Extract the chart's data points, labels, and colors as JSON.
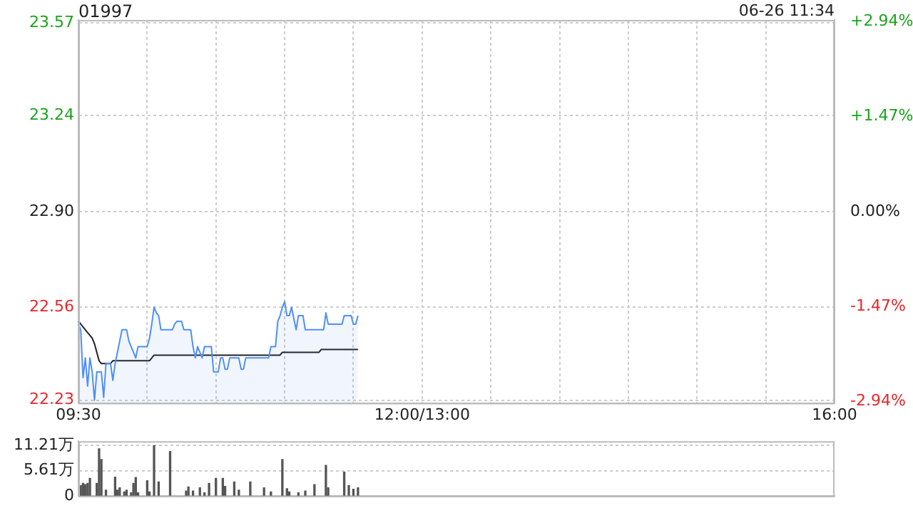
{
  "chart_data": [
    {
      "type": "line",
      "title": "01997",
      "subtitle": "06-26 11:34",
      "categories": [
        "09:30",
        null,
        null,
        null,
        null,
        null,
        null,
        null,
        null,
        null,
        null,
        null,
        null,
        null,
        null,
        null,
        null,
        null,
        null,
        null,
        null,
        null,
        null,
        null,
        null,
        null,
        null,
        null,
        null,
        null,
        null,
        null,
        null,
        null,
        null,
        null,
        null,
        null,
        null,
        null,
        null,
        null,
        null,
        null,
        null,
        null,
        null,
        null,
        null,
        null,
        null,
        null,
        null,
        null,
        null,
        null,
        null,
        null,
        null,
        null,
        null,
        null,
        null,
        null,
        null,
        null,
        null,
        null,
        null,
        null,
        null,
        null,
        null,
        null,
        null,
        null,
        null,
        null,
        null,
        null,
        null,
        null,
        null,
        null,
        null,
        null,
        null,
        null,
        null,
        null,
        null,
        null,
        null,
        null,
        null,
        null,
        null,
        null,
        null,
        null,
        null,
        null,
        null,
        null,
        null,
        null,
        null,
        null,
        null,
        null,
        null,
        null,
        null,
        null,
        null,
        null,
        null,
        null,
        null,
        null,
        null,
        null,
        null,
        null,
        null,
        null,
        null,
        null,
        null,
        null,
        null,
        null,
        null,
        null,
        null,
        null,
        null,
        null,
        null,
        null,
        null,
        null,
        null,
        null,
        null,
        null,
        null,
        null,
        null,
        null,
        "12:00/13:00",
        null,
        null,
        null,
        null,
        null,
        null,
        null,
        null,
        null,
        null,
        null,
        null,
        null,
        null,
        null,
        null,
        null,
        null,
        null,
        null,
        null,
        null,
        null,
        null,
        null,
        null,
        null,
        null,
        null,
        null,
        null,
        null,
        null,
        null,
        null,
        null,
        null,
        null,
        null,
        null,
        null,
        null,
        null,
        null,
        null,
        null,
        null,
        null,
        null,
        null,
        null,
        null,
        null,
        null,
        null,
        null,
        null,
        null,
        null,
        null,
        null,
        null,
        null,
        null,
        null,
        null,
        null,
        null,
        null,
        null,
        null,
        null,
        null,
        null,
        null,
        null,
        null,
        null,
        null,
        null,
        null,
        null,
        null,
        null,
        null,
        null,
        null,
        null,
        null,
        null,
        null,
        null,
        null,
        null,
        null,
        null,
        null,
        null,
        null,
        null,
        null,
        null,
        null,
        null,
        null,
        null,
        null,
        null,
        null,
        null,
        null,
        null,
        null,
        null,
        null,
        null,
        null,
        null,
        null,
        null,
        null,
        null,
        null,
        null,
        null,
        null,
        null,
        null,
        null,
        null,
        null,
        null,
        null,
        null,
        null,
        null,
        null,
        null,
        null,
        null,
        null,
        null,
        null,
        null,
        null,
        null,
        null,
        null,
        null,
        null,
        null,
        null,
        null,
        null,
        null,
        null,
        null,
        null,
        null,
        null,
        null,
        null,
        null,
        null,
        null,
        null,
        null,
        null,
        null,
        null,
        null,
        null,
        null,
        null,
        null,
        null,
        null,
        null,
        null,
        "16:00"
      ],
      "ylim": [
        22.22,
        23.58
      ],
      "yticks": [
        {
          "value": 22.23,
          "label": "22.23"
        },
        {
          "value": 22.56,
          "label": "22.56"
        },
        {
          "value": 22.9,
          "label": "22.90"
        },
        {
          "value": 23.24,
          "label": "23.24"
        },
        {
          "value": 23.57,
          "label": "23.57"
        }
      ],
      "y2lim": [
        -2.97,
        2.97
      ],
      "y2ticks": [
        {
          "value": -2.94,
          "label": "-2.94%"
        },
        {
          "value": -1.47,
          "label": "-1.47%"
        },
        {
          "value": 0,
          "label": "0.00%"
        },
        {
          "value": 1.47,
          "label": "+1.47%"
        },
        {
          "value": 2.94,
          "label": "+2.94%"
        }
      ],
      "grid": true,
      "legend": false,
      "marker": "none",
      "line_style": "solid",
      "series": [
        {
          "type": "area",
          "color": "#4f8ff7",
          "values": [
            22.5,
            22.48,
            22.31,
            22.38,
            22.28,
            22.38,
            22.33,
            22.23,
            22.33,
            22.33,
            22.33,
            22.24,
            22.36,
            22.36,
            22.36,
            22.3,
            22.36,
            22.4,
            22.44,
            22.48,
            22.48,
            22.48,
            22.44,
            22.42,
            22.4,
            22.38,
            22.42,
            22.42,
            22.42,
            22.42,
            22.42,
            22.45,
            22.5,
            22.56,
            22.54,
            22.53,
            22.48,
            22.48,
            22.48,
            22.48,
            22.48,
            22.48,
            22.5,
            22.51,
            22.51,
            22.51,
            22.48,
            22.48,
            22.48,
            22.48,
            22.42,
            22.38,
            22.42,
            22.4,
            22.38,
            22.42,
            22.42,
            22.42,
            22.42,
            22.33,
            22.33,
            22.33,
            22.38,
            22.38,
            22.34,
            22.34,
            22.38,
            22.38,
            22.38,
            22.38,
            22.38,
            22.34,
            22.34,
            22.38,
            22.38,
            22.38,
            22.38,
            22.38,
            22.38,
            22.38,
            22.38,
            22.38,
            22.38,
            22.38,
            22.42,
            22.42,
            22.42,
            22.51,
            22.53,
            22.56,
            22.58,
            22.53,
            22.53,
            22.56,
            22.52,
            22.48,
            22.53,
            22.53,
            22.53,
            22.48,
            22.48,
            22.48,
            22.48,
            22.48,
            22.48,
            22.48,
            22.48,
            22.48,
            22.54,
            22.5,
            22.5,
            22.5,
            22.5,
            22.5,
            22.5,
            22.5,
            22.53,
            22.53,
            22.53,
            22.53,
            22.5,
            22.5,
            22.53,
            null,
            null,
            null,
            null,
            null,
            null,
            null,
            null,
            null,
            null,
            null,
            null,
            null,
            null,
            null,
            null,
            null,
            null,
            null,
            null,
            null,
            null,
            null,
            null,
            null,
            null,
            null,
            null,
            null,
            null,
            null,
            null,
            null,
            null,
            null,
            null,
            null,
            null,
            null,
            null,
            null,
            null,
            null,
            null,
            null,
            null,
            null,
            null,
            null,
            null,
            null,
            null,
            null,
            null,
            null,
            null,
            null,
            null,
            null,
            null,
            null,
            null,
            null,
            null,
            null,
            null,
            null,
            null,
            null,
            null,
            null,
            null,
            null,
            null,
            null,
            null,
            null,
            null,
            null,
            null,
            null,
            null,
            null,
            null,
            null,
            null,
            null,
            null,
            null,
            null,
            null,
            null,
            null,
            null,
            null,
            null,
            null,
            null,
            null,
            null,
            null,
            null,
            null,
            null,
            null,
            null,
            null,
            null,
            null,
            null,
            null,
            null,
            null,
            null,
            null,
            null,
            null,
            null,
            null,
            null,
            null,
            null,
            null,
            null,
            null,
            null,
            null,
            null,
            null,
            null,
            null,
            null,
            null,
            null,
            null,
            null,
            null,
            null,
            null,
            null,
            null,
            null,
            null,
            null,
            null,
            null,
            null,
            null,
            null,
            null,
            null,
            null,
            null,
            null,
            null,
            null,
            null,
            null,
            null,
            null,
            null,
            null,
            null,
            null,
            null,
            null,
            null,
            null,
            null,
            null,
            null,
            null,
            null,
            null,
            null,
            null,
            null,
            null,
            null,
            null,
            null,
            null,
            null,
            null,
            null,
            null,
            null,
            null,
            null,
            null,
            null,
            null,
            null,
            null,
            null,
            null,
            null,
            null,
            null,
            null,
            null,
            null,
            null,
            null,
            null,
            null,
            null,
            null
          ]
        },
        {
          "type": "line",
          "color": "#222222",
          "values": [
            22.51,
            22.5,
            22.49,
            22.48,
            22.47,
            22.46,
            22.45,
            22.43,
            22.4,
            22.37,
            22.36,
            22.36,
            22.36,
            22.36,
            22.36,
            22.37,
            22.37,
            22.37,
            22.37,
            22.37,
            22.37,
            22.37,
            22.37,
            22.37,
            22.37,
            22.37,
            22.37,
            22.37,
            22.37,
            22.37,
            22.37,
            22.37,
            22.38,
            22.39,
            22.39,
            22.39,
            22.39,
            22.39,
            22.39,
            22.39,
            22.39,
            22.39,
            22.39,
            22.39,
            22.39,
            22.39,
            22.39,
            22.39,
            22.39,
            22.39,
            22.39,
            22.39,
            22.39,
            22.39,
            22.39,
            22.39,
            22.39,
            22.39,
            22.39,
            22.39,
            22.39,
            22.39,
            22.39,
            22.39,
            22.39,
            22.39,
            22.39,
            22.39,
            22.39,
            22.39,
            22.39,
            22.39,
            22.39,
            22.39,
            22.39,
            22.39,
            22.39,
            22.39,
            22.39,
            22.39,
            22.39,
            22.39,
            22.39,
            22.39,
            22.39,
            22.39,
            22.39,
            22.39,
            22.39,
            22.4,
            22.4,
            22.4,
            22.4,
            22.4,
            22.4,
            22.4,
            22.4,
            22.4,
            22.4,
            22.4,
            22.4,
            22.4,
            22.4,
            22.4,
            22.4,
            22.4,
            22.41,
            22.41,
            22.41,
            22.41,
            22.41,
            22.41,
            22.41,
            22.41,
            22.41,
            22.41,
            22.41,
            22.41,
            22.41,
            22.41,
            22.41,
            22.41,
            22.41,
            null,
            null,
            null,
            null,
            null,
            null,
            null,
            null,
            null,
            null,
            null,
            null,
            null,
            null,
            null,
            null,
            null,
            null,
            null,
            null,
            null,
            null,
            null,
            null,
            null,
            null,
            null,
            null,
            null,
            null,
            null,
            null,
            null,
            null,
            null,
            null,
            null,
            null,
            null,
            null,
            null,
            null,
            null,
            null,
            null,
            null,
            null,
            null,
            null,
            null,
            null,
            null,
            null,
            null,
            null,
            null,
            null,
            null,
            null,
            null,
            null,
            null,
            null,
            null,
            null,
            null,
            null,
            null,
            null,
            null,
            null,
            null,
            null,
            null,
            null,
            null,
            null,
            null,
            null,
            null,
            null,
            null,
            null,
            null,
            null,
            null,
            null,
            null,
            null,
            null,
            null,
            null,
            null,
            null,
            null,
            null,
            null,
            null,
            null,
            null,
            null,
            null,
            null,
            null,
            null,
            null,
            null,
            null,
            null,
            null,
            null,
            null,
            null,
            null,
            null,
            null,
            null,
            null,
            null,
            null,
            null,
            null,
            null,
            null,
            null,
            null,
            null,
            null,
            null,
            null,
            null,
            null,
            null,
            null,
            null,
            null,
            null,
            null,
            null,
            null,
            null,
            null,
            null,
            null,
            null,
            null,
            null,
            null,
            null,
            null,
            null,
            null,
            null,
            null,
            null,
            null,
            null,
            null,
            null,
            null,
            null,
            null,
            null,
            null,
            null,
            null,
            null,
            null,
            null,
            null,
            null,
            null,
            null,
            null,
            null,
            null,
            null,
            null,
            null,
            null,
            null,
            null,
            null,
            null,
            null,
            null,
            null,
            null,
            null,
            null,
            null,
            null,
            null,
            null,
            null,
            null,
            null,
            null,
            null,
            null,
            null,
            null,
            null,
            null,
            null,
            null,
            null,
            null
          ]
        }
      ]
    },
    {
      "type": "bar",
      "categories": [
        null,
        null,
        null,
        null,
        null,
        null,
        null,
        null,
        null,
        null,
        null,
        null,
        null,
        null,
        null,
        null,
        null,
        null,
        null,
        null,
        null,
        null,
        null,
        null,
        null,
        null,
        null,
        null,
        null,
        null,
        null,
        null,
        null,
        null,
        null,
        null,
        null,
        null,
        null,
        null,
        null,
        null,
        null,
        null,
        null,
        null,
        null,
        null,
        null,
        null,
        null,
        null,
        null,
        null,
        null,
        null,
        null,
        null,
        null,
        null,
        null,
        null,
        null,
        null,
        null,
        null,
        null,
        null,
        null,
        null,
        null,
        null,
        null,
        null,
        null,
        null,
        null,
        null,
        null,
        null,
        null,
        null,
        null,
        null,
        null,
        null,
        null,
        null,
        null,
        null,
        null,
        null,
        null,
        null,
        null,
        null,
        null,
        null,
        null,
        null,
        null,
        null,
        null,
        null,
        null,
        null,
        null,
        null,
        null,
        null,
        null,
        null,
        null,
        null,
        null,
        null,
        null,
        null,
        null,
        null,
        null,
        null,
        null,
        null,
        null,
        null,
        null,
        null,
        null,
        null,
        null,
        null,
        null,
        null,
        null,
        null,
        null,
        null,
        null,
        null,
        null,
        null,
        null,
        null,
        null,
        null,
        null,
        null,
        null,
        null,
        null,
        null,
        null,
        null,
        null,
        null,
        null,
        null,
        null,
        null,
        null,
        null,
        null,
        null,
        null,
        null,
        null,
        null,
        null,
        null,
        null,
        null,
        null,
        null,
        null,
        null,
        null,
        null,
        null,
        null,
        null,
        null,
        null,
        null,
        null,
        null,
        null,
        null,
        null,
        null,
        null,
        null,
        null,
        null,
        null,
        null,
        null,
        null,
        null,
        null,
        null,
        null,
        null,
        null,
        null,
        null,
        null,
        null,
        null,
        null,
        null,
        null,
        null,
        null,
        null,
        null,
        null,
        null,
        null,
        null,
        null,
        null,
        null,
        null,
        null,
        null,
        null,
        null,
        null,
        null,
        null,
        null,
        null,
        null,
        null,
        null,
        null,
        null,
        null,
        null,
        null,
        null,
        null,
        null,
        null,
        null,
        null,
        null,
        null,
        null,
        null,
        null,
        null,
        null,
        null,
        null,
        null,
        null,
        null,
        null,
        null,
        null,
        null,
        null,
        null,
        null,
        null,
        null,
        null,
        null,
        null,
        null,
        null,
        null,
        null,
        null,
        null,
        null,
        null,
        null,
        null,
        null,
        null,
        null,
        null,
        null,
        null,
        null,
        null,
        null,
        null,
        null,
        null,
        null,
        null,
        null,
        null,
        null,
        null,
        null,
        null,
        null,
        null,
        null,
        null,
        null,
        null,
        null,
        null,
        null,
        null,
        null,
        null,
        null,
        null,
        null,
        null,
        null,
        null,
        null,
        null,
        null,
        null,
        null,
        null,
        null,
        null,
        null,
        null,
        null,
        null
      ],
      "ylim": [
        0,
        12.2
      ],
      "yticks": [
        {
          "value": 0,
          "label": "0"
        },
        {
          "value": 5.61,
          "label": "5.61万"
        },
        {
          "value": 11.21,
          "label": "11.21万"
        }
      ],
      "grid": "y",
      "legend": false,
      "tick_labels": "y",
      "color": "#555555",
      "values": [
        null,
        2.3,
        2.8,
        2.5,
        2.8,
        3.9,
        null,
        null,
        2.8,
        10.5,
        8.1,
        null,
        1.3,
        null,
        null,
        null,
        4.2,
        1.3,
        1.8,
        null,
        0.9,
        1.3,
        null,
        0.7,
        2.8,
        4.1,
        0.7,
        null,
        null,
        null,
        3.4,
        0.9,
        null,
        11.2,
        null,
        3.1,
        null,
        null,
        null,
        null,
        9.9,
        null,
        null,
        null,
        null,
        null,
        null,
        1.1,
        2,
        null,
        1.1,
        null,
        null,
        1.8,
        null,
        0.7,
        null,
        2.8,
        null,
        null,
        3.9,
        null,
        null,
        3.9,
        2.1,
        null,
        null,
        null,
        3.1,
        null,
        1.3,
        null,
        null,
        null,
        null,
        3.1,
        null,
        null,
        null,
        null,
        null,
        1.8,
        null,
        null,
        0.9,
        null,
        null,
        null,
        null,
        8.1,
        null,
        1.6,
        0.9,
        null,
        null,
        null,
        0.7,
        null,
        null,
        1.1,
        null,
        null,
        null,
        2.5,
        null,
        null,
        null,
        null,
        6.8,
        1.8,
        null,
        null,
        null,
        null,
        null,
        null,
        5.3,
        null,
        2.3,
        null,
        1.5,
        null,
        1.8,
        null,
        null,
        null,
        null,
        null,
        null,
        null,
        null,
        null,
        null,
        null,
        null,
        null,
        null,
        null,
        null,
        null,
        null,
        null,
        null,
        null,
        null,
        null,
        null,
        null,
        null,
        null,
        null,
        null,
        null,
        null,
        null,
        null,
        null,
        null,
        null,
        null,
        null,
        null,
        null,
        null,
        null,
        null,
        null,
        null,
        null,
        null,
        null,
        null,
        null,
        null,
        null,
        null,
        null,
        null,
        null,
        null,
        null,
        null,
        null,
        null,
        null,
        null,
        null,
        null,
        null,
        null,
        null,
        null,
        null,
        null,
        null,
        null,
        null,
        null,
        null,
        null,
        null,
        null,
        null,
        null,
        null,
        null,
        null,
        null,
        null,
        null,
        null,
        null,
        null,
        null,
        null,
        null,
        null,
        null,
        null,
        null,
        null,
        null,
        null,
        null,
        null,
        null,
        null,
        null,
        null,
        null,
        null,
        null,
        null,
        null,
        null,
        null,
        null,
        null,
        null,
        null,
        null,
        null,
        null,
        null,
        null,
        null,
        null,
        null,
        null,
        null,
        null,
        null,
        null,
        null,
        null,
        null,
        null,
        null,
        null,
        null,
        null,
        null,
        null,
        null,
        null,
        null,
        null,
        null,
        null,
        null,
        null,
        null,
        null,
        null,
        null,
        null,
        null,
        null,
        null,
        null,
        null,
        null,
        null,
        null,
        null,
        null,
        null,
        null,
        null,
        null,
        null,
        null,
        null,
        null,
        null,
        null,
        null,
        null,
        null,
        null,
        null,
        null,
        null,
        null,
        null,
        null,
        null,
        null,
        null,
        null,
        null,
        null,
        null,
        null,
        null,
        null,
        null,
        null,
        null,
        null,
        null,
        null,
        null,
        null,
        null,
        null,
        null,
        null,
        null,
        null,
        null
      ]
    }
  ]
}
